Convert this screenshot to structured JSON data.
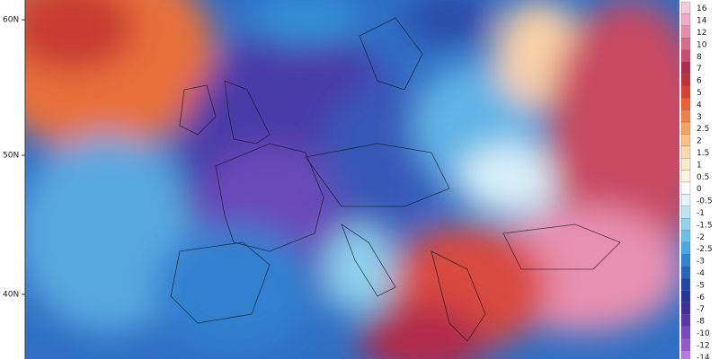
{
  "map": {
    "lat_labels": [
      "60N",
      "50N",
      "40N"
    ],
    "legend": {
      "items": [
        {
          "label": "16",
          "color": "#f5c9db"
        },
        {
          "label": "14",
          "color": "#f0abc6"
        },
        {
          "label": "12",
          "color": "#e88cac"
        },
        {
          "label": "10",
          "color": "#d86c8e"
        },
        {
          "label": "8",
          "color": "#c84c6e"
        },
        {
          "label": "7",
          "color": "#b02c4c"
        },
        {
          "label": "6",
          "color": "#c0303a"
        },
        {
          "label": "5",
          "color": "#d84230"
        },
        {
          "label": "4",
          "color": "#e86230"
        },
        {
          "label": "3",
          "color": "#f08242"
        },
        {
          "label": "2.5",
          "color": "#f4a262"
        },
        {
          "label": "2",
          "color": "#f8c282"
        },
        {
          "label": "1.5",
          "color": "#fbd8a8"
        },
        {
          "label": "1",
          "color": "#fde8c8"
        },
        {
          "label": "0.5",
          "color": "#fff4e4"
        },
        {
          "label": "0",
          "color": "#ffffff"
        },
        {
          "label": "-0.5",
          "color": "#e0f4fb"
        },
        {
          "label": "-1",
          "color": "#b8e6f5"
        },
        {
          "label": "-1.5",
          "color": "#90d4ef"
        },
        {
          "label": "-2",
          "color": "#68c0e8"
        },
        {
          "label": "-2.5",
          "color": "#48a8e0"
        },
        {
          "label": "-3",
          "color": "#3088d0"
        },
        {
          "label": "-4",
          "color": "#2468c0"
        },
        {
          "label": "-5",
          "color": "#2048a8"
        },
        {
          "label": "-6",
          "color": "#283898"
        },
        {
          "label": "-7",
          "color": "#403098"
        },
        {
          "label": "-8",
          "color": "#5838a8"
        },
        {
          "label": "-10",
          "color": "#7848c0"
        },
        {
          "label": "-12",
          "color": "#9858d0"
        },
        {
          "label": "-14",
          "color": "#b878e0"
        }
      ]
    }
  }
}
